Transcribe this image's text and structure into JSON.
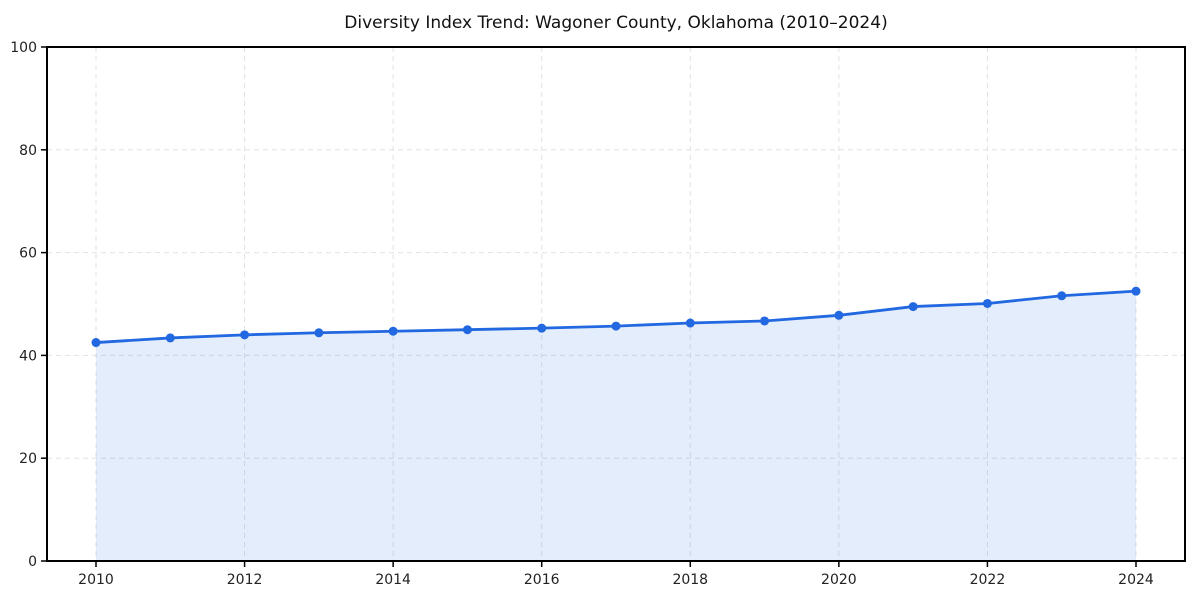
{
  "chart_data": {
    "type": "area",
    "title": "Diversity Index Trend: Wagoner County, Oklahoma (2010–2024)",
    "x": [
      2010,
      2011,
      2012,
      2013,
      2014,
      2015,
      2016,
      2017,
      2018,
      2019,
      2020,
      2021,
      2022,
      2023,
      2024
    ],
    "series": [
      {
        "name": "Diversity Index",
        "values": [
          42.5,
          43.4,
          44.0,
          44.4,
          44.7,
          45.0,
          45.3,
          45.7,
          46.3,
          46.7,
          47.8,
          49.5,
          50.1,
          51.6,
          52.5
        ]
      }
    ],
    "xlabel": "",
    "ylabel": "",
    "ylim": [
      0,
      100
    ],
    "yticks": [
      0,
      20,
      40,
      60,
      80,
      100
    ],
    "xticks": [
      2010,
      2012,
      2014,
      2016,
      2018,
      2020,
      2022,
      2024
    ],
    "grid": true,
    "grid_style": "dashed",
    "legend": false,
    "colors": {
      "line": "#2268e0",
      "marker": "#2268e0",
      "fill": "rgba(34,104,224,0.12)",
      "gridline": "#e2e2e2",
      "spine": "#000000",
      "tick_label": "#222222",
      "title": "#111111",
      "background": "#ffffff"
    }
  }
}
